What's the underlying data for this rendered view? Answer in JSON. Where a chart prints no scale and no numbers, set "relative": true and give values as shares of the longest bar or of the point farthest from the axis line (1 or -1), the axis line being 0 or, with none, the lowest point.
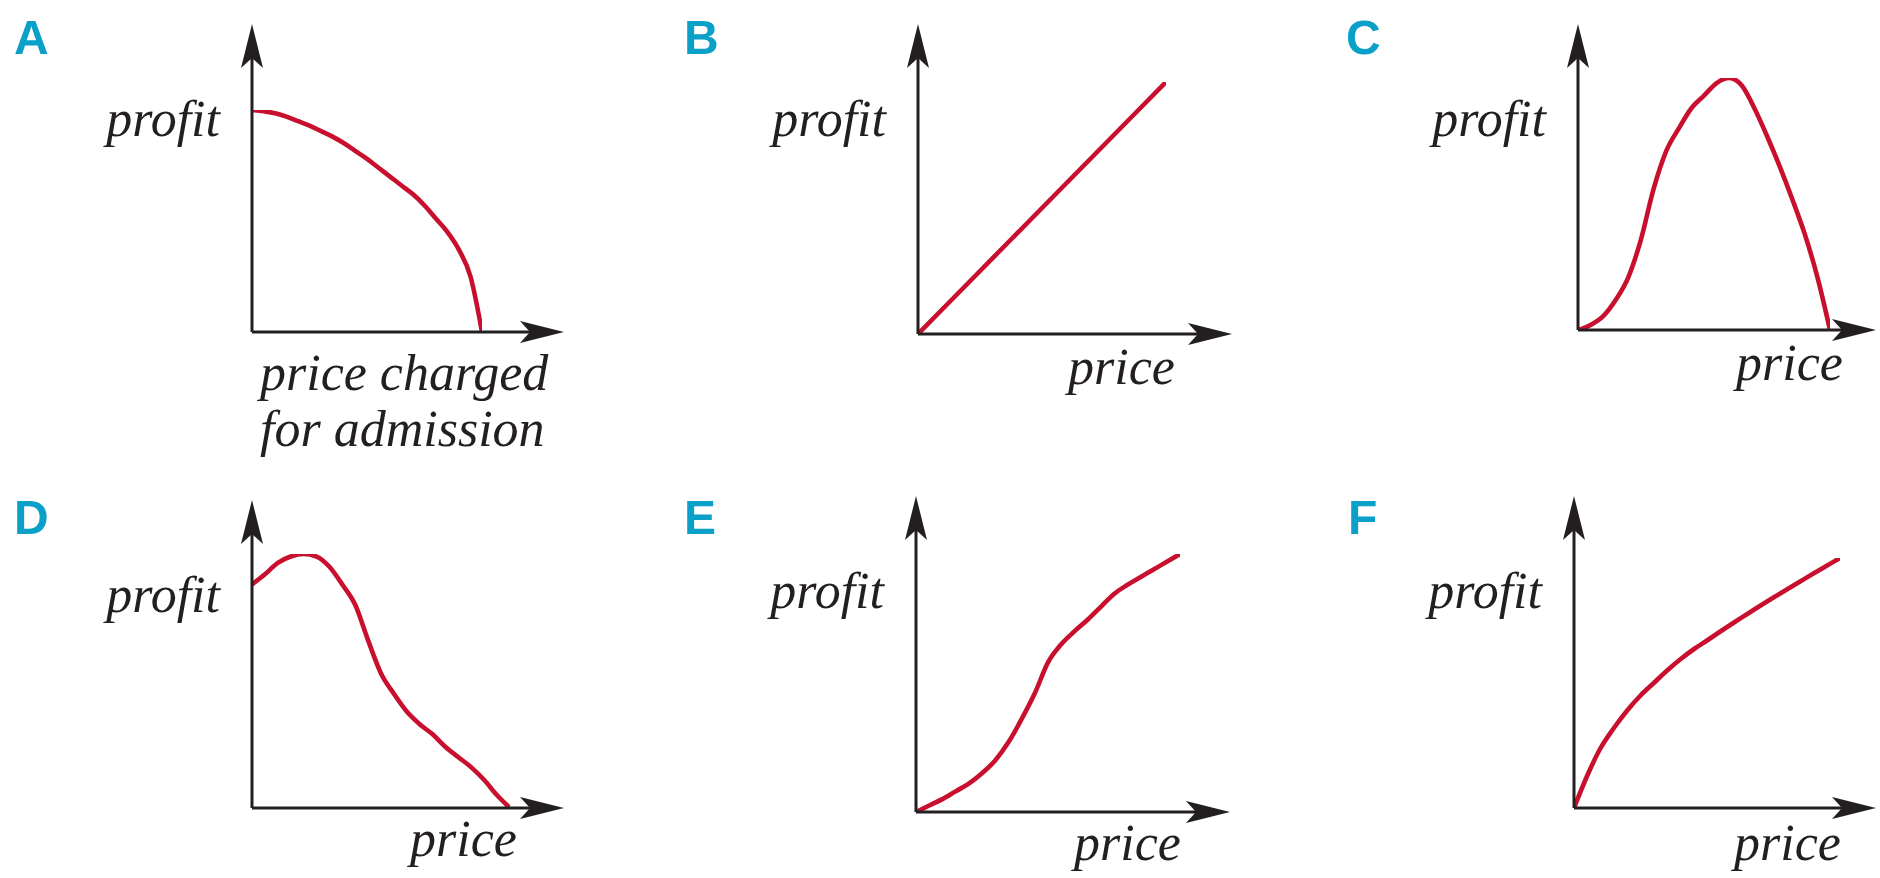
{
  "chart_data": [
    {
      "type": "line",
      "title": "A",
      "ylabel": "profit",
      "xlabel": "price charged for admission",
      "relative": true,
      "categories": [
        null,
        null,
        null,
        null,
        null,
        null,
        null,
        null,
        null,
        null,
        null,
        null,
        null,
        null,
        null,
        null,
        null,
        null,
        null,
        null,
        null
      ],
      "color": "#c8102e",
      "values": [
        1.0,
        0.995,
        0.985,
        0.97,
        0.95,
        0.93,
        0.905,
        0.88,
        0.85,
        0.815,
        0.78,
        0.74,
        0.7,
        0.66,
        0.62,
        0.57,
        0.51,
        0.45,
        0.37,
        0.25,
        0
      ]
    },
    {
      "type": "line",
      "title": "B",
      "ylabel": "profit",
      "xlabel": "price",
      "relative": true,
      "categories": [
        null,
        null,
        null,
        null,
        null
      ],
      "color": "#c8102e",
      "values": [
        0,
        0.25,
        0.5,
        0.75,
        1.0
      ]
    },
    {
      "type": "line",
      "title": "C",
      "ylabel": "profit",
      "xlabel": "price",
      "relative": true,
      "categories": [
        null,
        null,
        null,
        null,
        null,
        null,
        null,
        null,
        null,
        null,
        null,
        null,
        null,
        null,
        null,
        null,
        null,
        null,
        null,
        null,
        null
      ],
      "color": "#c8102e",
      "values": [
        0,
        0.02,
        0.055,
        0.12,
        0.21,
        0.36,
        0.56,
        0.71,
        0.8,
        0.88,
        0.93,
        0.98,
        1.0,
        0.97,
        0.88,
        0.77,
        0.65,
        0.52,
        0.38,
        0.21,
        0
      ]
    },
    {
      "type": "line",
      "title": "D",
      "ylabel": "profit",
      "xlabel": "price",
      "relative": true,
      "categories": [
        null,
        null,
        null,
        null,
        null,
        null,
        null,
        null,
        null,
        null,
        null,
        null,
        null,
        null,
        null,
        null,
        null,
        null,
        null,
        null,
        null
      ],
      "color": "#c8102e",
      "values": [
        0.88,
        0.92,
        0.965,
        0.99,
        1.0,
        0.99,
        0.95,
        0.88,
        0.8,
        0.66,
        0.53,
        0.45,
        0.38,
        0.33,
        0.29,
        0.24,
        0.2,
        0.16,
        0.11,
        0.05,
        0
      ]
    },
    {
      "type": "line",
      "title": "E",
      "ylabel": "profit",
      "xlabel": "price",
      "relative": true,
      "categories": [
        null,
        null,
        null,
        null,
        null,
        null,
        null,
        null,
        null,
        null,
        null,
        null,
        null,
        null,
        null,
        null,
        null,
        null,
        null,
        null,
        null
      ],
      "color": "#c8102e",
      "values": [
        0,
        0.025,
        0.05,
        0.08,
        0.11,
        0.15,
        0.2,
        0.27,
        0.36,
        0.46,
        0.58,
        0.65,
        0.7,
        0.745,
        0.795,
        0.845,
        0.88,
        0.91,
        0.94,
        0.97,
        1.0
      ]
    },
    {
      "type": "line",
      "title": "F",
      "ylabel": "profit",
      "xlabel": "price",
      "relative": true,
      "categories": [
        null,
        null,
        null,
        null,
        null,
        null,
        null,
        null,
        null,
        null,
        null,
        null,
        null,
        null,
        null,
        null,
        null,
        null,
        null,
        null,
        null
      ],
      "color": "#c8102e",
      "values": [
        0,
        0.13,
        0.24,
        0.32,
        0.39,
        0.45,
        0.5,
        0.55,
        0.595,
        0.635,
        0.67,
        0.706,
        0.741,
        0.775,
        0.809,
        0.842,
        0.874,
        0.906,
        0.938,
        0.969,
        1.0
      ]
    }
  ]
}
